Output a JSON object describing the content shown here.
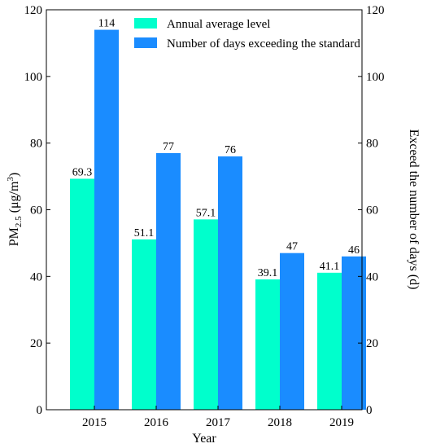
{
  "chart_data": {
    "type": "bar",
    "categories": [
      "2015",
      "2016",
      "2017",
      "2018",
      "2019"
    ],
    "xlabel": "Year",
    "ylabel_left": {
      "prefix": "PM",
      "sub": "2.5",
      "mid": " (μg/m",
      "sup": "3",
      "suffix": ")"
    },
    "ylabel_right": "Exceed the number of days (d)",
    "ylim_left": [
      0,
      120
    ],
    "ylim_right": [
      0,
      120
    ],
    "yticks_left": [
      "0",
      "20",
      "40",
      "60",
      "80",
      "100",
      "120"
    ],
    "yticks_right": [
      "0",
      "20",
      "40",
      "60",
      "80",
      "100",
      "120"
    ],
    "grid": false,
    "legend_position": "top-right",
    "series": [
      {
        "name": "Annual average level",
        "axis": "left",
        "color": "#00FFCC",
        "values": [
          69.3,
          51.1,
          57.1,
          39.1,
          41.1
        ],
        "labels": [
          "69.3",
          "51.1",
          "57.1",
          "39.1",
          "41.1"
        ]
      },
      {
        "name": "Number of days exceeding the standard",
        "axis": "right",
        "color": "#1A8CFF",
        "values": [
          114,
          77,
          76,
          47,
          46
        ],
        "labels": [
          "114",
          "77",
          "76",
          "47",
          "46"
        ]
      }
    ]
  }
}
